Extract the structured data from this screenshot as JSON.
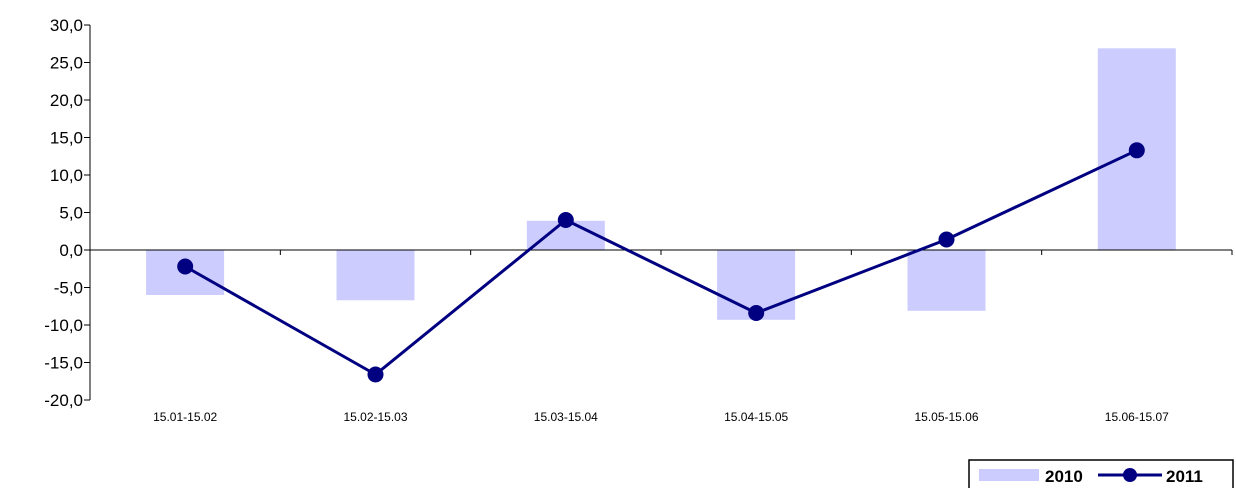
{
  "chart_data": {
    "type": "bar",
    "categories": [
      "15.01-15.02",
      "15.02-15.03",
      "15.03-15.04",
      "15.04-15.05",
      "15.05-15.06",
      "15.06-15.07"
    ],
    "series": [
      {
        "name": "2010",
        "type": "bar",
        "color": "#ccccff",
        "values": [
          -6.0,
          -6.7,
          3.9,
          -9.3,
          -8.1,
          26.9
        ]
      },
      {
        "name": "2011",
        "type": "line",
        "color": "#000080",
        "values": [
          -2.2,
          -16.6,
          4.0,
          -8.4,
          1.4,
          13.3
        ]
      }
    ],
    "ylim": [
      -20,
      30
    ],
    "yticks": [
      "30,0",
      "25,0",
      "20,0",
      "15,0",
      "10,0",
      "5,0",
      "0,0",
      "-5,0",
      "-10,0",
      "-15,0",
      "-20,0"
    ],
    "ytick_values": [
      30,
      25,
      20,
      15,
      10,
      5,
      0,
      -5,
      -10,
      -15,
      -20
    ],
    "legend_position": "bottom-right",
    "grid": false
  }
}
